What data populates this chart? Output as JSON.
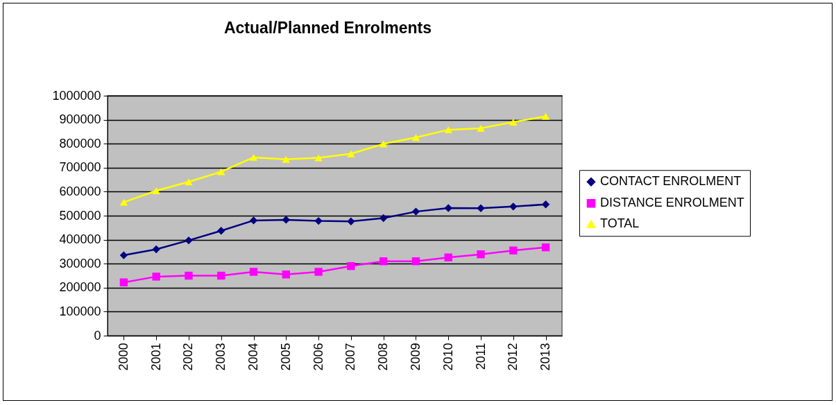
{
  "chart_data": {
    "type": "line",
    "title": "Actual/Planned Enrolments",
    "categories": [
      "2000",
      "2001",
      "2002",
      "2003",
      "2004",
      "2005",
      "2006",
      "2007",
      "2008",
      "2009",
      "2010",
      "2011",
      "2012",
      "2013"
    ],
    "series": [
      {
        "name": "CONTACT ENROLMENT",
        "color": "#000080",
        "marker": "diamond",
        "values": [
          335000,
          360000,
          397000,
          437000,
          480000,
          483000,
          478000,
          476000,
          490000,
          517000,
          532000,
          531000,
          538000,
          547000
        ]
      },
      {
        "name": "DISTANCE ENROLMENT",
        "color": "#ff00ff",
        "marker": "square",
        "values": [
          222000,
          246000,
          250000,
          250000,
          266000,
          255000,
          266000,
          290000,
          310000,
          310000,
          326000,
          339000,
          355000,
          368000
        ]
      },
      {
        "name": "TOTAL",
        "color": "#ffff00",
        "marker": "triangle",
        "values": [
          556000,
          604000,
          641000,
          683000,
          743000,
          735000,
          741000,
          758000,
          799000,
          826000,
          858000,
          864000,
          890000,
          914000
        ]
      }
    ],
    "ylim": [
      0,
      1000000
    ],
    "yticks": [
      0,
      100000,
      200000,
      300000,
      400000,
      500000,
      600000,
      700000,
      800000,
      900000,
      1000000
    ],
    "grid": "y",
    "legend": "right",
    "line_style": "solid"
  }
}
